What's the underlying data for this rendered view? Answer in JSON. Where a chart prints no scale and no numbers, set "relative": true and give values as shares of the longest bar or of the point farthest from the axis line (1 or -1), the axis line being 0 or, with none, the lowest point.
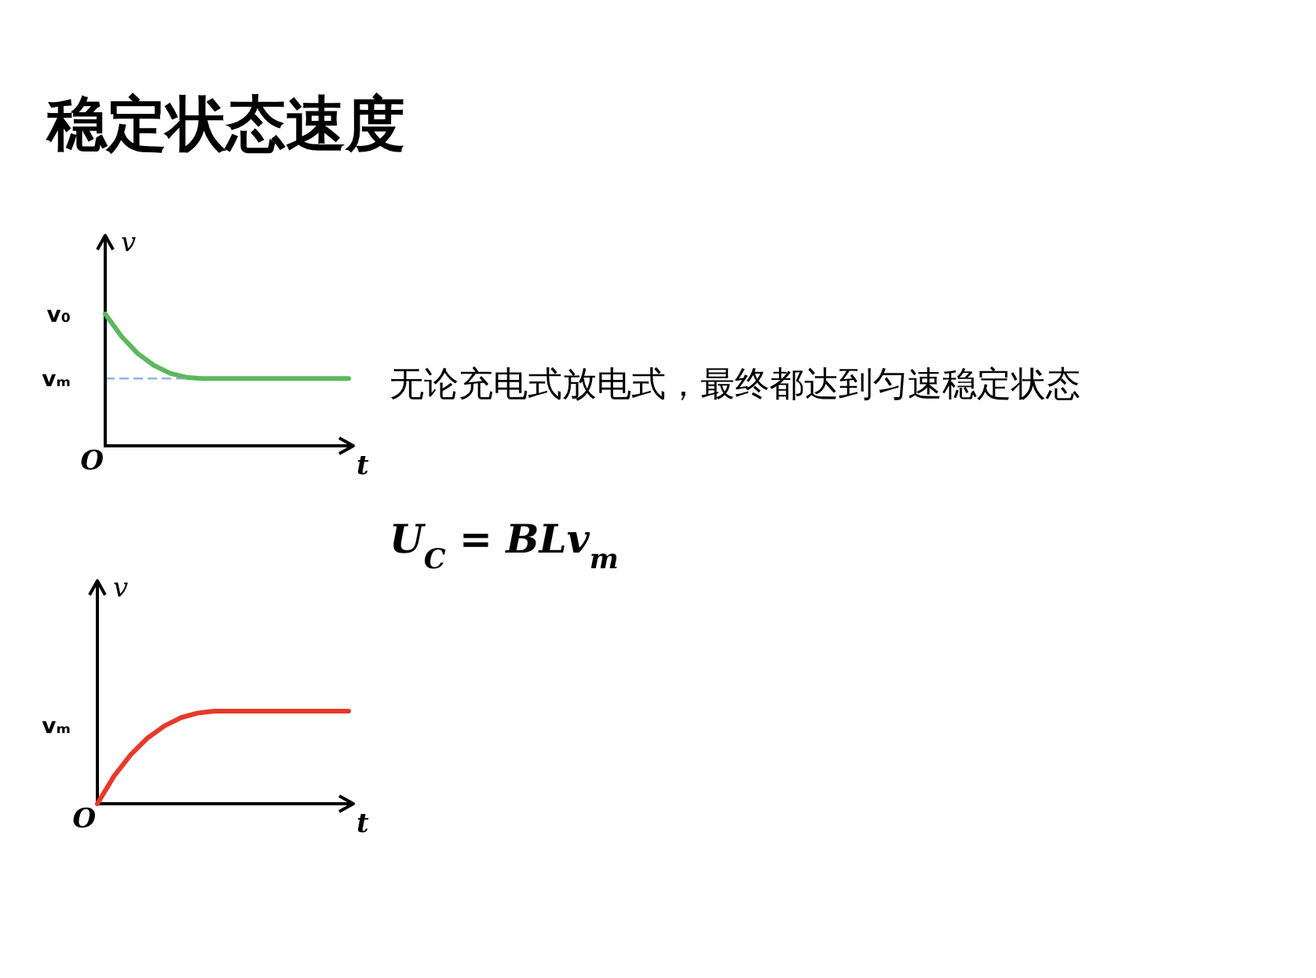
{
  "chart_data": [
    {
      "type": "other",
      "title": "稳定状态速度"
    },
    {
      "type": "line",
      "relative": true,
      "xlabel": "t",
      "ylabel": "v",
      "categories": [
        null,
        null,
        null,
        null,
        null,
        null,
        null,
        null,
        null,
        null,
        null,
        null,
        null,
        null,
        null,
        null
      ],
      "series": [
        {
          "color": "#5cb85c",
          "values": [
            1,
            0.83,
            0.7,
            0.61,
            0.55,
            0.52,
            0.51,
            0.51,
            0.51,
            0.51,
            0.51,
            0.51,
            0.51,
            0.51,
            0.51,
            0.51
          ]
        }
      ],
      "ref_lines": [
        {
          "axis": "y",
          "value": 0.51,
          "label": "vₘ",
          "color": "#8fb4e0",
          "line_style": "dashed"
        }
      ],
      "annotations": [
        "v₀",
        "O"
      ]
    },
    {
      "type": "other",
      "annotations": [
        "无论充电式放电式，最终都达到匀速稳定状态",
        "U$_{C}$ = BLv$_{m}$"
      ]
    },
    {
      "type": "line",
      "relative": true,
      "xlabel": "t",
      "ylabel": "v",
      "categories": [
        null,
        null,
        null,
        null,
        null,
        null,
        null,
        null,
        null,
        null,
        null,
        null,
        null,
        null,
        null,
        null
      ],
      "series": [
        {
          "color": "#e8392a",
          "values": [
            0,
            0.3,
            0.53,
            0.71,
            0.84,
            0.93,
            0.98,
            1,
            1,
            1,
            1,
            1,
            1,
            1,
            1,
            1
          ]
        }
      ],
      "annotations": [
        "vₘ",
        "O"
      ]
    }
  ]
}
